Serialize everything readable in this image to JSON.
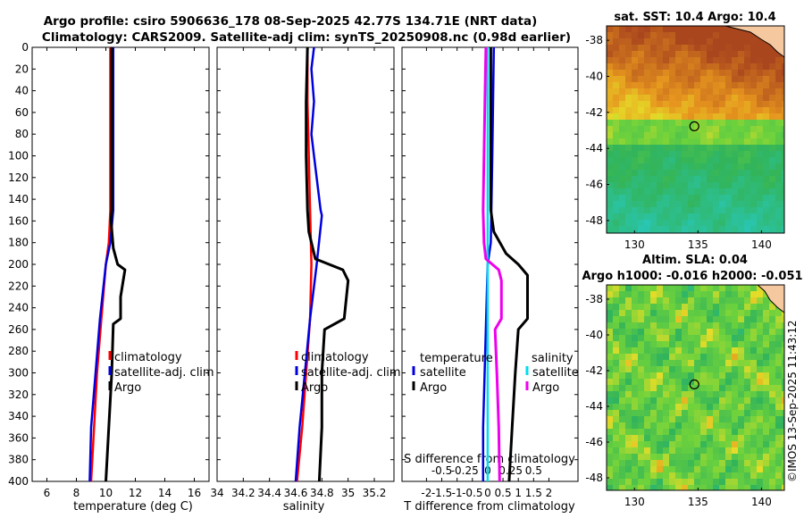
{
  "title": {
    "line1": "Argo profile: csiro 5906636_178 08-Sep-2025 42.77S 134.71E (NRT data)",
    "line2": "Climatology: CARS2009. Satellite-adj clim: synTS_20250908.nc (0.98d earlier)"
  },
  "watermark": "©IMOS 13-Sep-2025 11:43:12",
  "colors": {
    "climatology": "#ff0000",
    "satellite": "#0000dd",
    "argo": "#000000",
    "salinity_diff": "#ee00ee",
    "sat_salinity_diff": "#00ddee"
  },
  "depth_ticks": [
    "0",
    "20",
    "40",
    "60",
    "80",
    "100",
    "120",
    "140",
    "160",
    "180",
    "200",
    "220",
    "240",
    "260",
    "280",
    "300",
    "320",
    "340",
    "360",
    "380",
    "400"
  ],
  "chart_data": [
    {
      "type": "line",
      "name": "temperature-profile",
      "xlabel": "temperature (deg C)",
      "ylabel": "depth",
      "xlim": [
        5,
        17
      ],
      "ylim": [
        400,
        0
      ],
      "xticks": [
        "6",
        "8",
        "10",
        "12",
        "14",
        "16"
      ],
      "xtick_values": [
        6,
        8,
        10,
        12,
        14,
        16
      ],
      "series": [
        {
          "name": "climatology",
          "color": "#ff0000",
          "depth": [
            0,
            50,
            100,
            150,
            180,
            200,
            250,
            300,
            350,
            400
          ],
          "values": [
            10.3,
            10.3,
            10.3,
            10.3,
            10.2,
            10.0,
            9.7,
            9.4,
            9.2,
            9.0
          ]
        },
        {
          "name": "satellite-adj. clim",
          "color": "#0000dd",
          "depth": [
            0,
            50,
            100,
            150,
            180,
            200,
            250,
            300,
            350,
            400
          ],
          "values": [
            10.5,
            10.5,
            10.5,
            10.5,
            10.3,
            10.0,
            9.6,
            9.3,
            9.0,
            8.9
          ]
        },
        {
          "name": "Argo",
          "color": "#000000",
          "depth": [
            0,
            50,
            100,
            150,
            160,
            185,
            200,
            205,
            213,
            230,
            250,
            255,
            300,
            350,
            400
          ],
          "values": [
            10.4,
            10.4,
            10.4,
            10.4,
            10.35,
            10.5,
            10.8,
            11.3,
            11.2,
            11.0,
            11.0,
            10.5,
            10.4,
            10.2,
            10.0
          ]
        }
      ],
      "legend": [
        "climatology",
        "satellite-adj. clim",
        "Argo"
      ]
    },
    {
      "type": "line",
      "name": "salinity-profile",
      "xlabel": "salinity",
      "ylabel": "depth",
      "xlim": [
        34.0,
        35.35
      ],
      "ylim": [
        400,
        0
      ],
      "xticks": [
        "34",
        "34.2",
        "34.4",
        "34.6",
        "34.8",
        "35",
        "35.2"
      ],
      "xtick_values": [
        34.0,
        34.2,
        34.4,
        34.6,
        34.8,
        35.0,
        35.2
      ],
      "series": [
        {
          "name": "climatology",
          "color": "#ff0000",
          "depth": [
            0,
            50,
            100,
            150,
            200,
            250,
            300,
            350,
            400
          ],
          "values": [
            34.69,
            34.69,
            34.7,
            34.71,
            34.72,
            34.71,
            34.68,
            34.65,
            34.61
          ]
        },
        {
          "name": "satellite-adj. clim",
          "color": "#0000dd",
          "depth": [
            0,
            20,
            50,
            80,
            100,
            150,
            155,
            200,
            250,
            300,
            350,
            400
          ],
          "values": [
            34.74,
            34.72,
            34.74,
            34.72,
            34.74,
            34.79,
            34.8,
            34.76,
            34.71,
            34.67,
            34.63,
            34.6
          ]
        },
        {
          "name": "Argo",
          "color": "#000000",
          "depth": [
            0,
            50,
            100,
            150,
            170,
            185,
            195,
            205,
            215,
            250,
            260,
            300,
            350,
            400
          ],
          "values": [
            34.69,
            34.68,
            34.68,
            34.69,
            34.7,
            34.73,
            34.75,
            34.96,
            35.0,
            34.97,
            34.82,
            34.8,
            34.8,
            34.78
          ]
        }
      ],
      "legend": [
        "climatology",
        "satellite-adj. clim",
        "Argo"
      ]
    },
    {
      "type": "line",
      "name": "difference-profile",
      "xlabel": "T difference from climatology",
      "top_xlabel": "S difference from climatology",
      "xlim": [
        -2.8,
        2.95
      ],
      "ylim": [
        400,
        0
      ],
      "xticks": [
        "-2",
        "-1.5",
        "-1",
        "-0.5",
        "0",
        "0.5",
        "1",
        "1.5",
        "2"
      ],
      "xtick_values": [
        -2,
        -1.5,
        -1,
        -0.5,
        0,
        0.5,
        1,
        1.5,
        2
      ],
      "s_xticks": [
        "-0.5",
        "-0.25",
        "0",
        "0.25",
        "0.5"
      ],
      "s_xtick_values": [
        -0.5,
        -0.25,
        0,
        0.25,
        0.5
      ],
      "s_scale_note": "S difference axis shares position; 0.25 S aligns with 0.75 T",
      "series": [
        {
          "name": "temperature satellite",
          "color": "#0000dd",
          "depth": [
            0,
            100,
            180,
            200,
            250,
            300,
            350,
            400
          ],
          "values": [
            0.2,
            0.15,
            0.1,
            0.0,
            -0.05,
            -0.1,
            -0.15,
            -0.15
          ]
        },
        {
          "name": "temperature Argo",
          "color": "#000000",
          "depth": [
            0,
            50,
            100,
            150,
            170,
            190,
            200,
            210,
            220,
            250,
            260,
            300,
            350,
            400
          ],
          "values": [
            0.1,
            0.1,
            0.1,
            0.1,
            0.2,
            0.6,
            1.0,
            1.3,
            1.3,
            1.3,
            1.0,
            0.9,
            0.8,
            0.7
          ]
        },
        {
          "name": "salinity satellite",
          "color": "#00ddee",
          "depth": [
            0,
            100,
            200,
            300,
            400
          ],
          "values": [
            0.0,
            0.0,
            0.0,
            0.0,
            0.0
          ]
        },
        {
          "name": "salinity Argo",
          "color": "#ee00ee",
          "depth": [
            0,
            50,
            100,
            150,
            180,
            195,
            205,
            215,
            250,
            260,
            300,
            350,
            400
          ],
          "values": [
            -0.02,
            -0.03,
            -0.04,
            -0.05,
            -0.04,
            -0.02,
            0.12,
            0.15,
            0.15,
            0.08,
            0.1,
            0.12,
            0.13
          ]
        }
      ],
      "legend_left": {
        "header": "temperature",
        "items": [
          "satellite",
          "Argo"
        ]
      },
      "legend_right": {
        "header": "salinity",
        "items": [
          "satellite",
          "Argo"
        ]
      }
    },
    {
      "type": "heatmap",
      "name": "sst-map",
      "title": "sat. SST: 10.4 Argo: 10.4",
      "xticks": [
        "130",
        "135",
        "140"
      ],
      "xtick_values": [
        130,
        135,
        140
      ],
      "yticks": [
        "-38",
        "-40",
        "-42",
        "-44",
        "-46",
        "-48"
      ],
      "ytick_values": [
        -38,
        -40,
        -42,
        -44,
        -46,
        -48
      ],
      "xlim": [
        127.8,
        141.8
      ],
      "ylim": [
        -48.7,
        -37.2
      ],
      "profile_location": [
        134.71,
        -42.77
      ]
    },
    {
      "type": "heatmap",
      "name": "sla-map",
      "title_line1": "Altim. SLA: 0.04",
      "title_line2": "Argo h1000: -0.016 h2000: -0.051",
      "xticks": [
        "130",
        "135",
        "140"
      ],
      "xtick_values": [
        130,
        135,
        140
      ],
      "yticks": [
        "-38",
        "-40",
        "-42",
        "-44",
        "-46",
        "-48"
      ],
      "ytick_values": [
        -38,
        -40,
        -42,
        -44,
        -46,
        -48
      ],
      "xlim": [
        127.8,
        141.8
      ],
      "ylim": [
        -48.7,
        -37.2
      ],
      "profile_location": [
        134.71,
        -42.77
      ]
    }
  ]
}
